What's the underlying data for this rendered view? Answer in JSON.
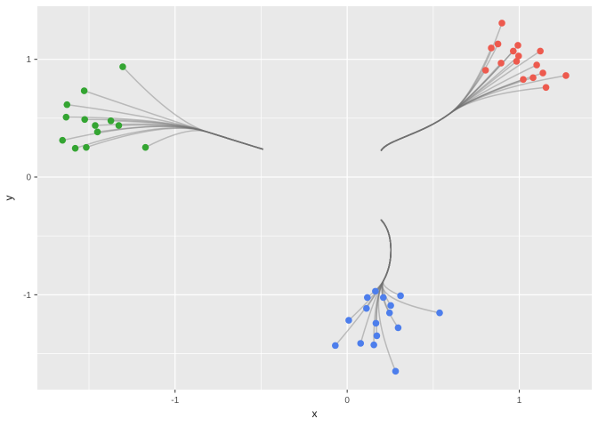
{
  "figure": {
    "style": "ggplot2-gray-theme",
    "panel_bg": "#E9E9E9",
    "grid_color": "#FFFFFF",
    "tick_text_color": "#4D4D4D",
    "axis_title_color": "#141414",
    "legend": "none",
    "title": ""
  },
  "chart_data": {
    "type": "scatter",
    "subtype": "clustered-points-with-bundled-tree-edges",
    "title": "",
    "xlabel": "x",
    "ylabel": "y",
    "xlim": [
      -1.8,
      1.421
    ],
    "ylim": [
      -1.806,
      1.451
    ],
    "x_ticks": [
      -1,
      0,
      1
    ],
    "x_tick_labels": [
      "-1",
      "0",
      "1"
    ],
    "y_ticks": [
      -1,
      0,
      1
    ],
    "y_tick_labels": [
      "-1",
      "0",
      "1"
    ],
    "x_minor_gridlines": [
      -1.5,
      -0.5,
      0.5
    ],
    "y_minor_gridlines": [
      -1.5,
      -0.5,
      0.5
    ],
    "grid": true,
    "edge_color": "#707070",
    "edge_alpha": 0.4,
    "edge_width": 1.5,
    "point_radius": 3.8,
    "series": [
      {
        "name": "cluster-green",
        "color": "#34A532",
        "trunk_root": [
          -0.491,
          0.237
        ],
        "trunk_c1": [
          -0.6,
          0.285
        ],
        "trunk_c2": [
          -0.71,
          0.335
        ],
        "hub": [
          -0.813,
          0.383
        ],
        "points": [
          [
            -1.304,
            0.937
          ],
          [
            -1.528,
            0.733
          ],
          [
            -1.628,
            0.615
          ],
          [
            -1.633,
            0.509
          ],
          [
            -1.525,
            0.489
          ],
          [
            -1.464,
            0.438
          ],
          [
            -1.373,
            0.478
          ],
          [
            -1.327,
            0.438
          ],
          [
            -1.451,
            0.383
          ],
          [
            -1.654,
            0.312
          ],
          [
            -1.58,
            0.244
          ],
          [
            -1.516,
            0.252
          ],
          [
            -1.172,
            0.252
          ]
        ]
      },
      {
        "name": "cluster-red",
        "color": "#ED5A4E",
        "trunk_root": [
          0.198,
          0.227
        ],
        "trunk_c1": [
          0.24,
          0.32
        ],
        "trunk_c2": [
          0.43,
          0.36
        ],
        "hub": [
          0.594,
          0.537
        ],
        "points": [
          [
            0.899,
            1.308
          ],
          [
            0.876,
            1.13
          ],
          [
            0.837,
            1.096
          ],
          [
            0.992,
            1.119
          ],
          [
            0.965,
            1.07
          ],
          [
            0.996,
            1.028
          ],
          [
            0.984,
            0.983
          ],
          [
            1.122,
            1.07
          ],
          [
            0.894,
            0.968
          ],
          [
            0.804,
            0.907
          ],
          [
            1.101,
            0.952
          ],
          [
            1.137,
            0.884
          ],
          [
            1.023,
            0.829
          ],
          [
            1.08,
            0.844
          ],
          [
            1.271,
            0.862
          ],
          [
            1.155,
            0.761
          ]
        ]
      },
      {
        "name": "cluster-blue",
        "color": "#4D7EEC",
        "trunk_root": [
          0.198,
          -0.365
        ],
        "trunk_c1": [
          0.27,
          -0.48
        ],
        "trunk_c2": [
          0.27,
          -0.72
        ],
        "hub": [
          0.212,
          -0.877
        ],
        "points": [
          [
            0.164,
            -0.97
          ],
          [
            0.117,
            -1.023
          ],
          [
            0.21,
            -1.023
          ],
          [
            0.31,
            -1.008
          ],
          [
            0.112,
            -1.116
          ],
          [
            0.253,
            -1.091
          ],
          [
            0.246,
            -1.154
          ],
          [
            0.537,
            -1.154
          ],
          [
            0.009,
            -1.217
          ],
          [
            0.167,
            -1.242
          ],
          [
            0.296,
            -1.28
          ],
          [
            0.172,
            -1.348
          ],
          [
            0.078,
            -1.413
          ],
          [
            -0.069,
            -1.431
          ],
          [
            0.155,
            -1.426
          ],
          [
            0.281,
            -1.65
          ]
        ]
      }
    ]
  }
}
